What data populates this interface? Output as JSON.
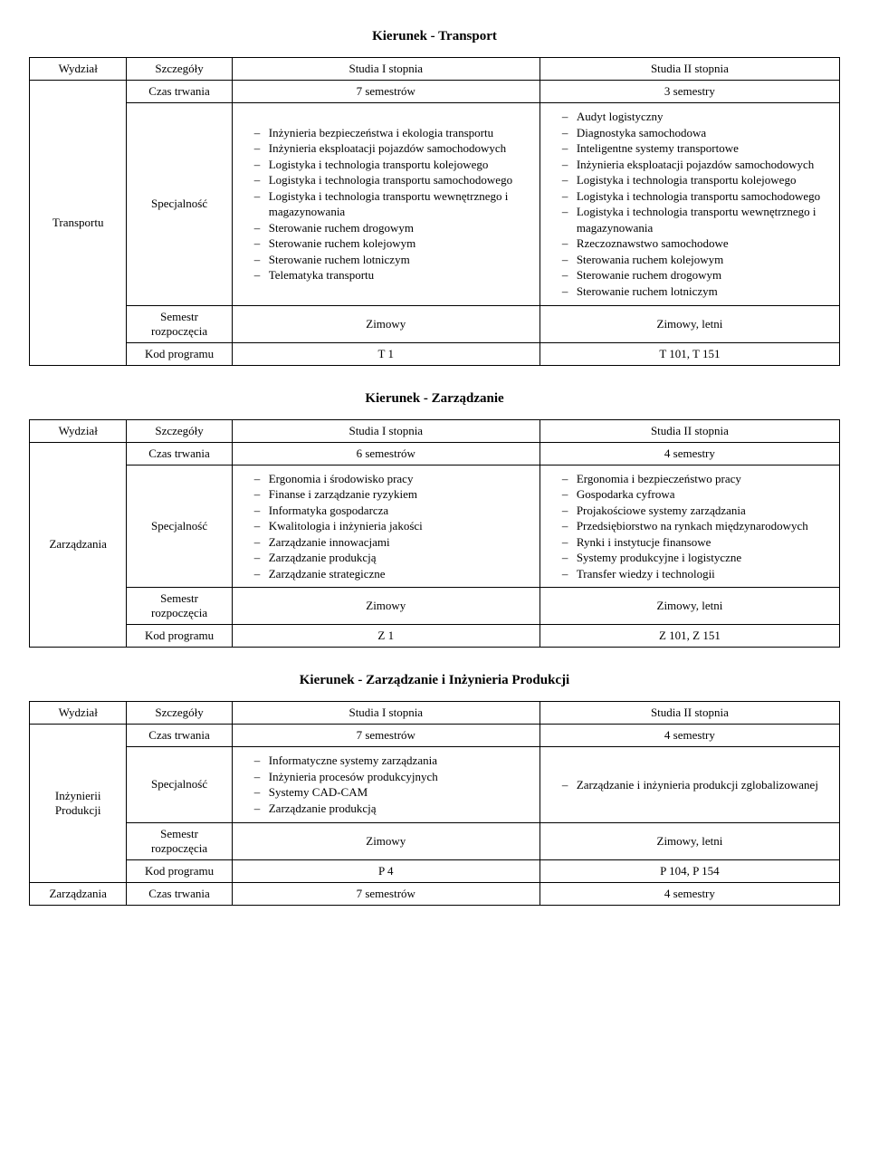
{
  "headers": {
    "wydzial": "Wydział",
    "szczegoly": "Szczegóły",
    "s1": "Studia I stopnia",
    "s2": "Studia II stopnia"
  },
  "row_labels": {
    "czas": "Czas trwania",
    "spec": "Specjalność",
    "semestr": "Semestr rozpoczęcia",
    "kod": "Kod programu"
  },
  "sections": [
    {
      "title": "Kierunek - Transport",
      "wydzial": "Transportu",
      "czas_s1": "7 semestrów",
      "czas_s2": "3 semestry",
      "spec_s1": [
        "Inżynieria bezpieczeństwa i ekologia transportu",
        "Inżynieria eksploatacji pojazdów samochodowych",
        "Logistyka i technologia transportu kolejowego",
        "Logistyka i technologia transportu samochodowego",
        "Logistyka i technologia transportu wewnętrznego i magazynowania",
        "Sterowanie ruchem drogowym",
        "Sterowanie ruchem kolejowym",
        "Sterowanie ruchem lotniczym",
        "Telematyka transportu"
      ],
      "spec_s2": [
        "Audyt logistyczny",
        "Diagnostyka samochodowa",
        "Inteligentne systemy transportowe",
        "Inżynieria eksploatacji pojazdów samochodowych",
        "Logistyka i technologia transportu kolejowego",
        "Logistyka i technologia transportu samochodowego",
        "Logistyka i technologia transportu wewnętrznego i magazynowania",
        "Rzeczoznawstwo samochodowe",
        "Sterowania ruchem kolejowym",
        "Sterowanie ruchem drogowym",
        "Sterowanie ruchem lotniczym"
      ],
      "sem_s1": "Zimowy",
      "sem_s2": "Zimowy, letni",
      "kod_s1": "T 1",
      "kod_s2": "T 101, T 151"
    },
    {
      "title": "Kierunek - Zarządzanie",
      "wydzial": "Zarządzania",
      "czas_s1": "6 semestrów",
      "czas_s2": "4 semestry",
      "spec_s1": [
        "Ergonomia i środowisko pracy",
        "Finanse i zarządzanie ryzykiem",
        "Informatyka gospodarcza",
        "Kwalitologia i inżynieria jakości",
        "Zarządzanie innowacjami",
        "Zarządzanie produkcją",
        "Zarządzanie strategiczne"
      ],
      "spec_s2": [
        "Ergonomia i bezpieczeństwo pracy",
        "Gospodarka cyfrowa",
        "Projakościowe systemy zarządzania",
        "Przedsiębiorstwo na rynkach międzynarodowych",
        "Rynki i instytucje finansowe",
        "Systemy produkcyjne i logistyczne",
        "Transfer wiedzy i technologii"
      ],
      "sem_s1": "Zimowy",
      "sem_s2": "Zimowy, letni",
      "kod_s1": "Z 1",
      "kod_s2": "Z 101, Z 151"
    },
    {
      "title": "Kierunek - Zarządzanie i Inżynieria Produkcji",
      "wydzial": "Inżynierii Produkcji",
      "czas_s1": "7 semestrów",
      "czas_s2": "4 semestry",
      "spec_s1": [
        "Informatyczne systemy zarządzania",
        "Inżynieria procesów produkcyjnych",
        "Systemy CAD-CAM",
        "Zarządzanie produkcją"
      ],
      "spec_s2": [
        "Zarządzanie i inżynieria produkcji zglobalizowanej"
      ],
      "sem_s1": "Zimowy",
      "sem_s2": "Zimowy, letni",
      "kod_s1": "P 4",
      "kod_s2": "P 104, P 154",
      "extra_row": {
        "wydzial": "Zarządzania",
        "czas_label": "Czas trwania",
        "czas_s1": "7 semestrów",
        "czas_s2": "4 semestry"
      }
    }
  ]
}
